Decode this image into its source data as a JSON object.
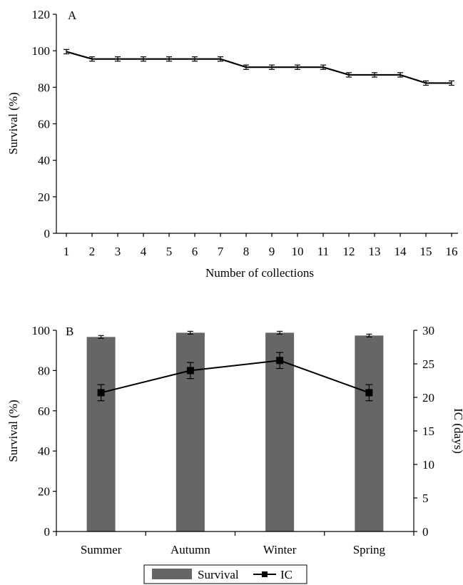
{
  "chart_data": [
    {
      "panel_label": "A",
      "type": "line",
      "x": [
        1,
        2,
        3,
        4,
        5,
        6,
        7,
        8,
        9,
        10,
        11,
        12,
        13,
        14,
        15,
        16
      ],
      "series": [
        {
          "values": [
            99.5,
            95.5,
            95.5,
            95.5,
            95.5,
            95.5,
            95.5,
            91.0,
            91.0,
            91.0,
            91.0,
            86.8,
            86.8,
            86.8,
            82.3,
            82.3
          ],
          "error": [
            1.2,
            1.2,
            1.2,
            1.2,
            1.2,
            1.2,
            1.2,
            1.2,
            1.2,
            1.2,
            1.2,
            1.2,
            1.2,
            1.2,
            1.2,
            1.2
          ],
          "color": "#000000"
        }
      ],
      "xlabel": "Number of collections",
      "ylabel": "Survival (%)",
      "ylim": [
        0,
        120
      ],
      "yticks": [
        0,
        20,
        40,
        60,
        80,
        100,
        120
      ],
      "grid": false
    },
    {
      "panel_label": "B",
      "type": "bar",
      "categories": [
        "Summer",
        "Autumn",
        "Winter",
        "Spring"
      ],
      "series": [
        {
          "name": "Survival",
          "type": "bar",
          "axis": "left",
          "values": [
            96.7,
            98.8,
            98.8,
            97.4
          ],
          "error": [
            0.7,
            0.7,
            0.7,
            0.7
          ],
          "color": "#666666"
        },
        {
          "name": "IC",
          "type": "line",
          "axis": "right",
          "values": [
            20.7,
            24.0,
            25.5,
            20.7
          ],
          "error": [
            1.2,
            1.2,
            1.2,
            1.2
          ],
          "color": "#000000"
        }
      ],
      "ylabel": "Survival (%)",
      "ylabel_right": "IC (days)",
      "ylim": [
        0,
        100
      ],
      "ylim_right": [
        0,
        30
      ],
      "yticks": [
        0,
        20,
        40,
        60,
        80,
        100
      ],
      "yticks_right": [
        0,
        5,
        10,
        15,
        20,
        25,
        30
      ],
      "legend_position": "bottom-center",
      "grid": false
    }
  ]
}
